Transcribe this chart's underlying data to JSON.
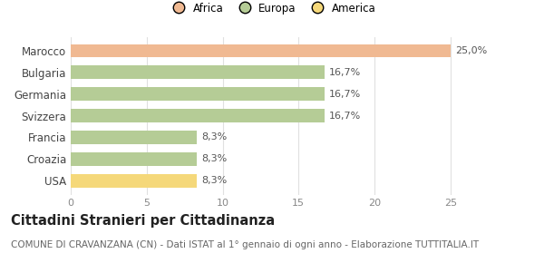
{
  "categories": [
    "Marocco",
    "Bulgaria",
    "Germania",
    "Svizzera",
    "Francia",
    "Croazia",
    "USA"
  ],
  "values": [
    25.0,
    16.7,
    16.7,
    16.7,
    8.3,
    8.3,
    8.3
  ],
  "labels": [
    "25,0%",
    "16,7%",
    "16,7%",
    "16,7%",
    "8,3%",
    "8,3%",
    "8,3%"
  ],
  "bar_colors": [
    "#f0b992",
    "#b5cc96",
    "#b5cc96",
    "#b5cc96",
    "#b5cc96",
    "#b5cc96",
    "#f5d87a"
  ],
  "legend_labels": [
    "Africa",
    "Europa",
    "America"
  ],
  "legend_colors": [
    "#f0b992",
    "#b5cc96",
    "#f5d87a"
  ],
  "xlim": [
    0,
    26.5
  ],
  "xticks": [
    0,
    5,
    10,
    15,
    20,
    25
  ],
  "title": "Cittadini Stranieri per Cittadinanza",
  "subtitle": "COMUNE DI CRAVANZANA (CN) - Dati ISTAT al 1° gennaio di ogni anno - Elaborazione TUTTITALIA.IT",
  "background_color": "#ffffff",
  "grid_color": "#e0e0e0",
  "bar_label_fontsize": 8,
  "tick_fontsize": 8,
  "ytick_fontsize": 8.5,
  "title_fontsize": 10.5,
  "subtitle_fontsize": 7.5,
  "legend_fontsize": 8.5
}
